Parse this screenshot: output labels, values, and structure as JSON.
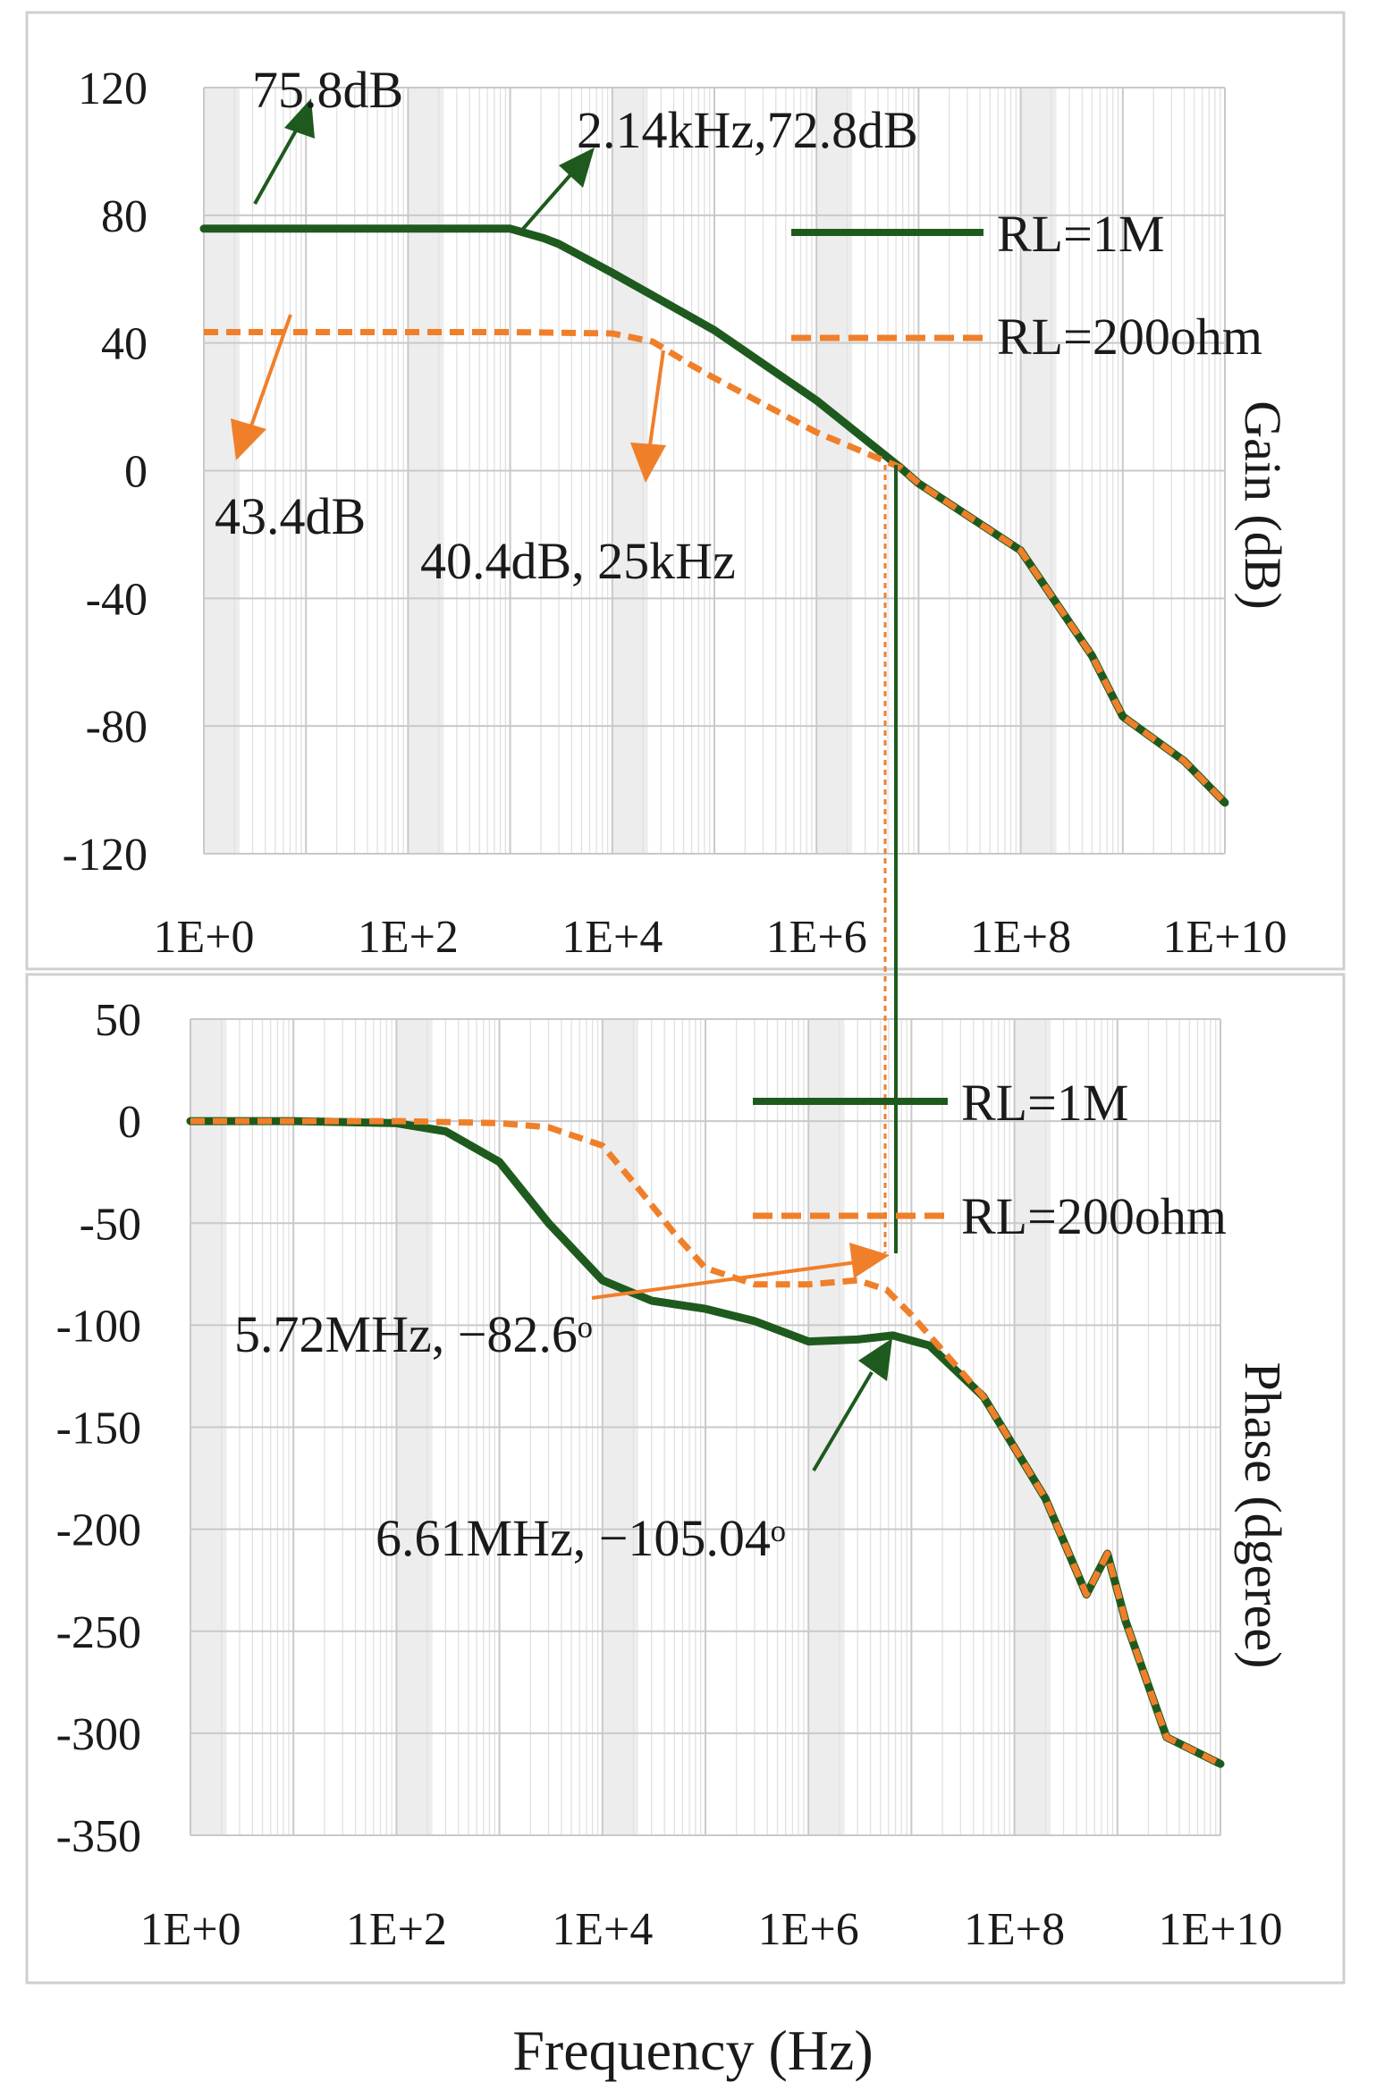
{
  "chart_data": [
    {
      "type": "line",
      "panel": "gain",
      "title": "",
      "xlabel": "",
      "ylabel": "Gain (dB)",
      "xscale": "log",
      "xlim": [
        1,
        10000000000
      ],
      "ylim": [
        -120,
        120
      ],
      "yticks": [
        "120",
        "80",
        "40",
        "0",
        "-40",
        "-80",
        "-120"
      ],
      "xticks": [
        "1E+0",
        "1E+2",
        "1E+4",
        "1E+6",
        "1E+8",
        "1E+10"
      ],
      "grid": true,
      "legend_position": "right",
      "series": [
        {
          "name": "RL=1M",
          "color": "#1e5a1e",
          "dash": "solid",
          "x": [
            1,
            10,
            100,
            1000,
            2140,
            3000,
            10000,
            100000,
            1000000,
            6610000,
            10000000,
            100000000,
            500000000,
            1000000000,
            4000000000,
            10000000000
          ],
          "y": [
            75.8,
            75.8,
            75.8,
            75.8,
            72.8,
            71,
            62,
            44,
            22,
            1,
            -4,
            -25,
            -58,
            -77,
            -91,
            -104
          ]
        },
        {
          "name": "RL=200ohm",
          "color": "#f07f2a",
          "dash": "dashed",
          "x": [
            1,
            10,
            100,
            1000,
            10000,
            25000,
            60000,
            100000,
            1000000,
            6610000,
            10000000,
            100000000,
            500000000,
            1000000000,
            4000000000,
            10000000000
          ],
          "y": [
            43.4,
            43.4,
            43.4,
            43.4,
            43,
            40.4,
            33,
            29,
            12,
            1,
            -4,
            -25,
            -58,
            -77,
            -91,
            -104
          ]
        }
      ],
      "annotations": [
        "75.8dB",
        "2.14kHz,72.8dB",
        "43.4dB",
        "40.4dB, 25kHz"
      ]
    },
    {
      "type": "line",
      "panel": "phase",
      "title": "",
      "xlabel": "Frequency (Hz)",
      "ylabel": "Phase (dgeree)",
      "xscale": "log",
      "xlim": [
        1,
        10000000000
      ],
      "ylim": [
        -350,
        50
      ],
      "yticks": [
        "50",
        "0",
        "-50",
        "-100",
        "-150",
        "-200",
        "-250",
        "-300",
        "-350"
      ],
      "xticks": [
        "1E+0",
        "1E+2",
        "1E+4",
        "1E+6",
        "1E+8",
        "1E+10"
      ],
      "grid": true,
      "legend_position": "right",
      "series": [
        {
          "name": "RL=1M",
          "color": "#1e5a1e",
          "dash": "solid",
          "x": [
            1,
            10,
            100,
            300,
            1000,
            3000,
            10000,
            30000,
            100000,
            300000,
            1000000,
            3000000,
            6610000,
            15000000,
            50000000,
            200000000,
            500000000,
            800000000,
            1200000000,
            3000000000,
            10000000000
          ],
          "y": [
            0,
            0,
            -1,
            -5,
            -20,
            -50,
            -78,
            -88,
            -92,
            -98,
            -108,
            -107,
            -105.04,
            -110,
            -135,
            -185,
            -232,
            -212,
            -245,
            -302,
            -315
          ]
        },
        {
          "name": "RL=200ohm",
          "color": "#f07f2a",
          "dash": "dashed",
          "x": [
            1,
            10,
            100,
            1000,
            3000,
            10000,
            20000,
            50000,
            100000,
            300000,
            1000000,
            3000000,
            5720000,
            10000000,
            50000000,
            200000000,
            500000000,
            800000000,
            1200000000,
            3000000000,
            10000000000
          ],
          "y": [
            0,
            0,
            0,
            -1,
            -3,
            -12,
            -30,
            -55,
            -72,
            -80,
            -80,
            -78,
            -82.6,
            -95,
            -135,
            -185,
            -232,
            -212,
            -245,
            -302,
            -315
          ]
        }
      ],
      "annotations": [
        "5.72MHz, −82.6ᵒ",
        "6.61MHz, −105.04ᵒ"
      ]
    }
  ]
}
